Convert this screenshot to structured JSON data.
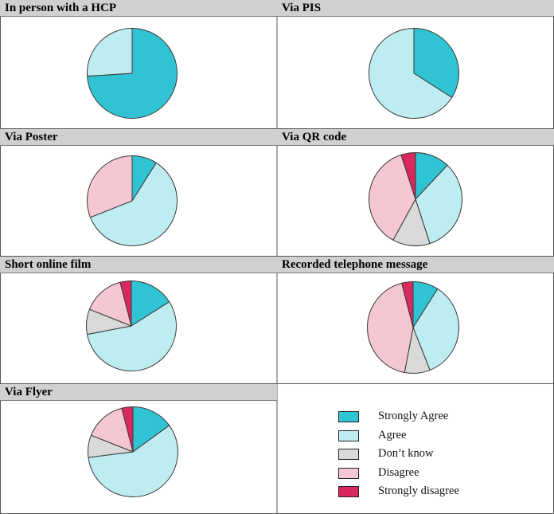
{
  "chart_data": [
    {
      "type": "pie",
      "title": "In person with a HCP",
      "categories": [
        "Strongly Agree",
        "Agree"
      ],
      "values": [
        74,
        26
      ]
    },
    {
      "type": "pie",
      "title": "Via PIS",
      "categories": [
        "Strongly Agree",
        "Agree"
      ],
      "values": [
        34,
        66
      ]
    },
    {
      "type": "pie",
      "title": "Via Poster",
      "categories": [
        "Strongly Agree",
        "Agree",
        "Disagree"
      ],
      "values": [
        9,
        60,
        31
      ]
    },
    {
      "type": "pie",
      "title": "Via QR code",
      "categories": [
        "Strongly Agree",
        "Agree",
        "Don’t know",
        "Disagree",
        "Strongly disagree"
      ],
      "values": [
        12,
        33,
        13,
        37,
        5
      ]
    },
    {
      "type": "pie",
      "title": "Short online film",
      "categories": [
        "Strongly Agree",
        "Agree",
        "Don’t know",
        "Disagree",
        "Strongly disagree"
      ],
      "values": [
        16,
        56,
        9,
        15,
        4
      ]
    },
    {
      "type": "pie",
      "title": "Recorded telephone message",
      "categories": [
        "Strongly Agree",
        "Agree",
        "Don’t know",
        "Disagree",
        "Strongly disagree"
      ],
      "values": [
        9,
        35,
        9,
        43,
        4
      ]
    },
    {
      "type": "pie",
      "title": "Via Flyer",
      "categories": [
        "Strongly Agree",
        "Agree",
        "Don’t know",
        "Disagree",
        "Strongly disagree"
      ],
      "values": [
        15,
        58,
        8,
        15,
        4
      ]
    }
  ],
  "legend": {
    "items": [
      {
        "label": "Strongly Agree",
        "color": "#30c3d3"
      },
      {
        "label": "Agree",
        "color": "#bdecf1"
      },
      {
        "label": "Don’t know",
        "color": "#d9d9d9"
      },
      {
        "label": "Disagree",
        "color": "#f4c7d2"
      },
      {
        "label": "Strongly disagree",
        "color": "#d8285e"
      }
    ]
  },
  "colors": {
    "Strongly Agree": "#30c3d3",
    "Agree": "#bdecf1",
    "Don’t know": "#d9d9d9",
    "Disagree": "#f4c7d2",
    "Strongly disagree": "#d8285e",
    "outline": "#3a3a3a"
  }
}
